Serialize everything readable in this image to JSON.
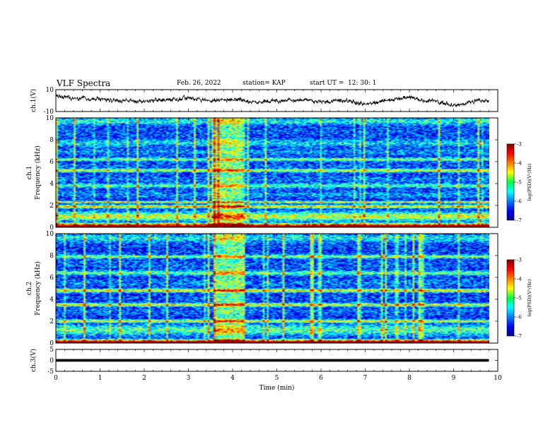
{
  "header": {
    "title": "VLF Spectra",
    "date": "Feb. 26, 2022",
    "station": "station= KAP",
    "start_label": "start UT =",
    "start_time": "12: 30: 1"
  },
  "chart_data": [
    {
      "type": "line",
      "panel": "ch1-waveform",
      "ylabel": "ch.1(V)",
      "ylim": [
        -10,
        10
      ],
      "yticks": [
        "10",
        "-10"
      ],
      "xlim": [
        0,
        10
      ],
      "x_range_data": [
        0,
        9.8
      ],
      "y_anchors": [
        [
          0,
          4
        ],
        [
          0.5,
          2
        ],
        [
          1,
          1
        ],
        [
          1.5,
          0
        ],
        [
          2,
          -1
        ],
        [
          2.5,
          1
        ],
        [
          3,
          2
        ],
        [
          3.5,
          0
        ],
        [
          4,
          1
        ],
        [
          4.5,
          -1
        ],
        [
          5,
          0
        ],
        [
          5.5,
          1
        ],
        [
          6,
          -1
        ],
        [
          6.5,
          0
        ],
        [
          7,
          -3
        ],
        [
          7.5,
          0
        ],
        [
          8,
          3
        ],
        [
          8.5,
          0
        ],
        [
          9,
          -4
        ],
        [
          9.5,
          -1
        ],
        [
          9.8,
          0
        ]
      ]
    },
    {
      "type": "heatmap",
      "panel": "ch1-spectrogram",
      "ylabel": "ch.1\nFrequency (kHz)",
      "ylim": [
        0,
        10
      ],
      "yticks": [
        "0",
        "2",
        "4",
        "6",
        "8",
        "10"
      ],
      "xlim": [
        0,
        10
      ],
      "data_time_range": [
        0,
        9.8
      ],
      "colorbar": {
        "label": "log(PSD)(V²/Hz)",
        "range": [
          -7,
          -3
        ],
        "ticks": [
          "-3",
          "-4",
          "-5",
          "-6",
          "-7"
        ]
      },
      "burst_interval_min": [
        3.55,
        4.25
      ],
      "bands": [
        {
          "f": 0.2,
          "w": 0.4,
          "v": -3.6
        },
        {
          "f": 1.0,
          "w": 0.8,
          "v": -4.7
        },
        {
          "f": 1.9,
          "w": 0.3,
          "v": -4.3
        },
        {
          "f": 2.3,
          "w": 0.2,
          "v": -4.6
        },
        {
          "f": 3.0,
          "w": 0.6,
          "v": -5.9
        },
        {
          "f": 3.8,
          "w": 0.4,
          "v": -5.2
        },
        {
          "f": 4.4,
          "w": 0.6,
          "v": -6.0
        },
        {
          "f": 5.2,
          "w": 0.3,
          "v": -4.6
        },
        {
          "f": 5.6,
          "w": 0.4,
          "v": -6.1
        },
        {
          "f": 6.2,
          "w": 0.3,
          "v": -5.0
        },
        {
          "f": 6.9,
          "w": 0.5,
          "v": -5.9
        },
        {
          "f": 7.7,
          "w": 0.6,
          "v": -5.6
        },
        {
          "f": 8.8,
          "w": 1.2,
          "v": -6.2
        },
        {
          "f": 9.7,
          "w": 0.6,
          "v": -5.4
        }
      ]
    },
    {
      "type": "heatmap",
      "panel": "ch2-spectrogram",
      "ylabel": "ch.2\nFrequency (kHz)",
      "ylim": [
        0,
        10
      ],
      "yticks": [
        "0",
        "2",
        "4",
        "6",
        "8",
        "10"
      ],
      "xlim": [
        0,
        10
      ],
      "data_time_range": [
        0,
        9.8
      ],
      "colorbar": {
        "label": "log(PSD)(V²/Hz)",
        "range": [
          -7,
          -3
        ],
        "ticks": [
          "-3",
          "-4",
          "-5",
          "-6",
          "-7"
        ]
      },
      "burst_interval_min": [
        3.55,
        4.25
      ],
      "bands": [
        {
          "f": 0.2,
          "w": 0.3,
          "v": -3.8
        },
        {
          "f": 1.2,
          "w": 1.0,
          "v": -5.2
        },
        {
          "f": 2.0,
          "w": 0.3,
          "v": -4.6
        },
        {
          "f": 2.9,
          "w": 0.6,
          "v": -6.1
        },
        {
          "f": 3.5,
          "w": 0.3,
          "v": -4.5
        },
        {
          "f": 4.1,
          "w": 0.5,
          "v": -6.2
        },
        {
          "f": 4.8,
          "w": 0.3,
          "v": -4.4
        },
        {
          "f": 5.5,
          "w": 0.6,
          "v": -6.0
        },
        {
          "f": 6.4,
          "w": 0.4,
          "v": -5.1
        },
        {
          "f": 7.2,
          "w": 0.6,
          "v": -6.1
        },
        {
          "f": 7.9,
          "w": 0.3,
          "v": -4.9
        },
        {
          "f": 8.7,
          "w": 1.0,
          "v": -6.3
        },
        {
          "f": 9.6,
          "w": 0.7,
          "v": -5.5
        }
      ]
    },
    {
      "type": "line",
      "panel": "ch3-waveform",
      "ylabel": "ch.3(V)",
      "ylim": [
        -5,
        5
      ],
      "yticks": [
        "5",
        "0",
        "-5"
      ],
      "xlim": [
        0,
        10
      ],
      "x_range_data": [
        0,
        9.8
      ],
      "baseline_v": 0,
      "thickness_v": 1.2,
      "xlabel": "Time (min)",
      "xticks": [
        "0",
        "1",
        "2",
        "3",
        "4",
        "5",
        "6",
        "7",
        "8",
        "9",
        "10"
      ]
    }
  ]
}
